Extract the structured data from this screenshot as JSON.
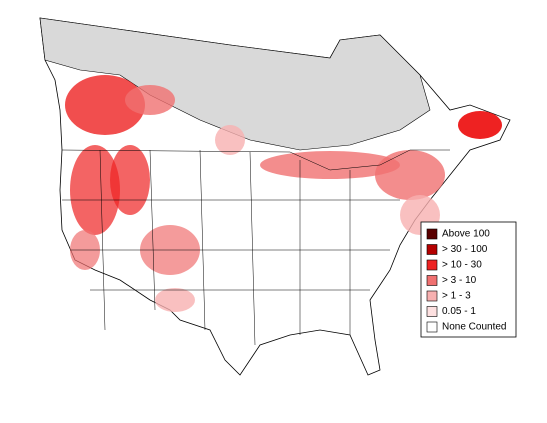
{
  "legend": {
    "items": [
      {
        "label": "Above 100",
        "color": "#5a0000"
      },
      {
        "label": "> 30 - 100",
        "color": "#b40000"
      },
      {
        "label": "> 10 - 30",
        "color": "#ee2222"
      },
      {
        "label": "> 3 - 10",
        "color": "#f07070"
      },
      {
        "label": "> 1 - 3",
        "color": "#f7b0b0"
      },
      {
        "label": "0.05 - 1",
        "color": "#fde0e0"
      },
      {
        "label": "None Counted",
        "color": "#ffffff"
      }
    ]
  }
}
